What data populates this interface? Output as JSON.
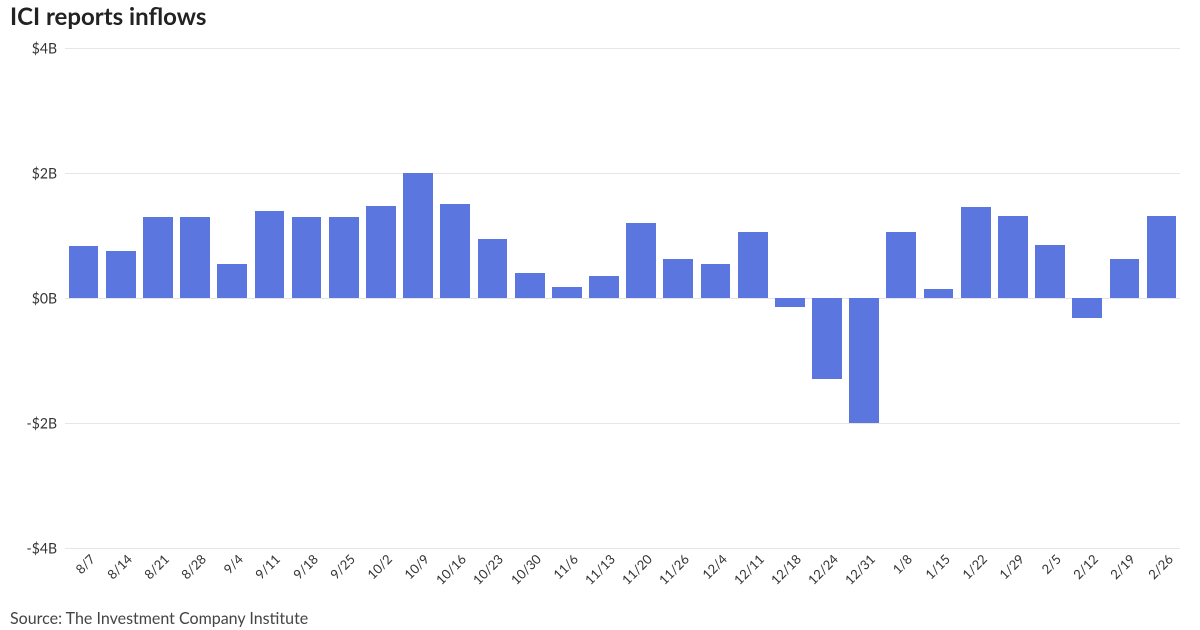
{
  "title": "ICI reports inflows",
  "source": "Source: The Investment Company Institute",
  "chart": {
    "type": "bar",
    "bar_color": "#5c76e0",
    "background_color": "#ffffff",
    "grid_color": "#e6e6e6",
    "text_color": "#333333",
    "title_fontsize": 24,
    "label_fontsize": 14,
    "xlabel_fontsize": 13,
    "xlabel_rotation_deg": -45,
    "bar_width_ratio": 0.8,
    "y_axis": {
      "min": -4,
      "max": 4,
      "ticks": [
        4,
        2,
        0,
        -2,
        -4
      ],
      "tick_labels": [
        "$4B",
        "$2B",
        "$0B",
        "-$2B",
        "-$4B"
      ]
    },
    "series": [
      {
        "label": "8/7",
        "value": 0.83
      },
      {
        "label": "8/14",
        "value": 0.75
      },
      {
        "label": "8/21",
        "value": 1.3
      },
      {
        "label": "8/28",
        "value": 1.3
      },
      {
        "label": "9/4",
        "value": 0.55
      },
      {
        "label": "9/11",
        "value": 1.4
      },
      {
        "label": "9/18",
        "value": 1.3
      },
      {
        "label": "9/25",
        "value": 1.3
      },
      {
        "label": "10/2",
        "value": 1.48
      },
      {
        "label": "10/9",
        "value": 2.0
      },
      {
        "label": "10/16",
        "value": 1.5
      },
      {
        "label": "10/23",
        "value": 0.95
      },
      {
        "label": "10/30",
        "value": 0.4
      },
      {
        "label": "11/6",
        "value": 0.18
      },
      {
        "label": "11/13",
        "value": 0.35
      },
      {
        "label": "11/20",
        "value": 1.2
      },
      {
        "label": "11/26",
        "value": 0.63
      },
      {
        "label": "12/4",
        "value": 0.55
      },
      {
        "label": "12/11",
        "value": 1.05
      },
      {
        "label": "12/18",
        "value": -0.15
      },
      {
        "label": "12/24",
        "value": -1.3
      },
      {
        "label": "12/31",
        "value": -2.0
      },
      {
        "label": "1/8",
        "value": 1.05
      },
      {
        "label": "1/15",
        "value": 0.15
      },
      {
        "label": "1/22",
        "value": 1.45
      },
      {
        "label": "1/29",
        "value": 1.32
      },
      {
        "label": "2/5",
        "value": 0.85
      },
      {
        "label": "2/12",
        "value": -0.32
      },
      {
        "label": "2/19",
        "value": 0.63
      },
      {
        "label": "2/26",
        "value": 1.32
      }
    ]
  }
}
